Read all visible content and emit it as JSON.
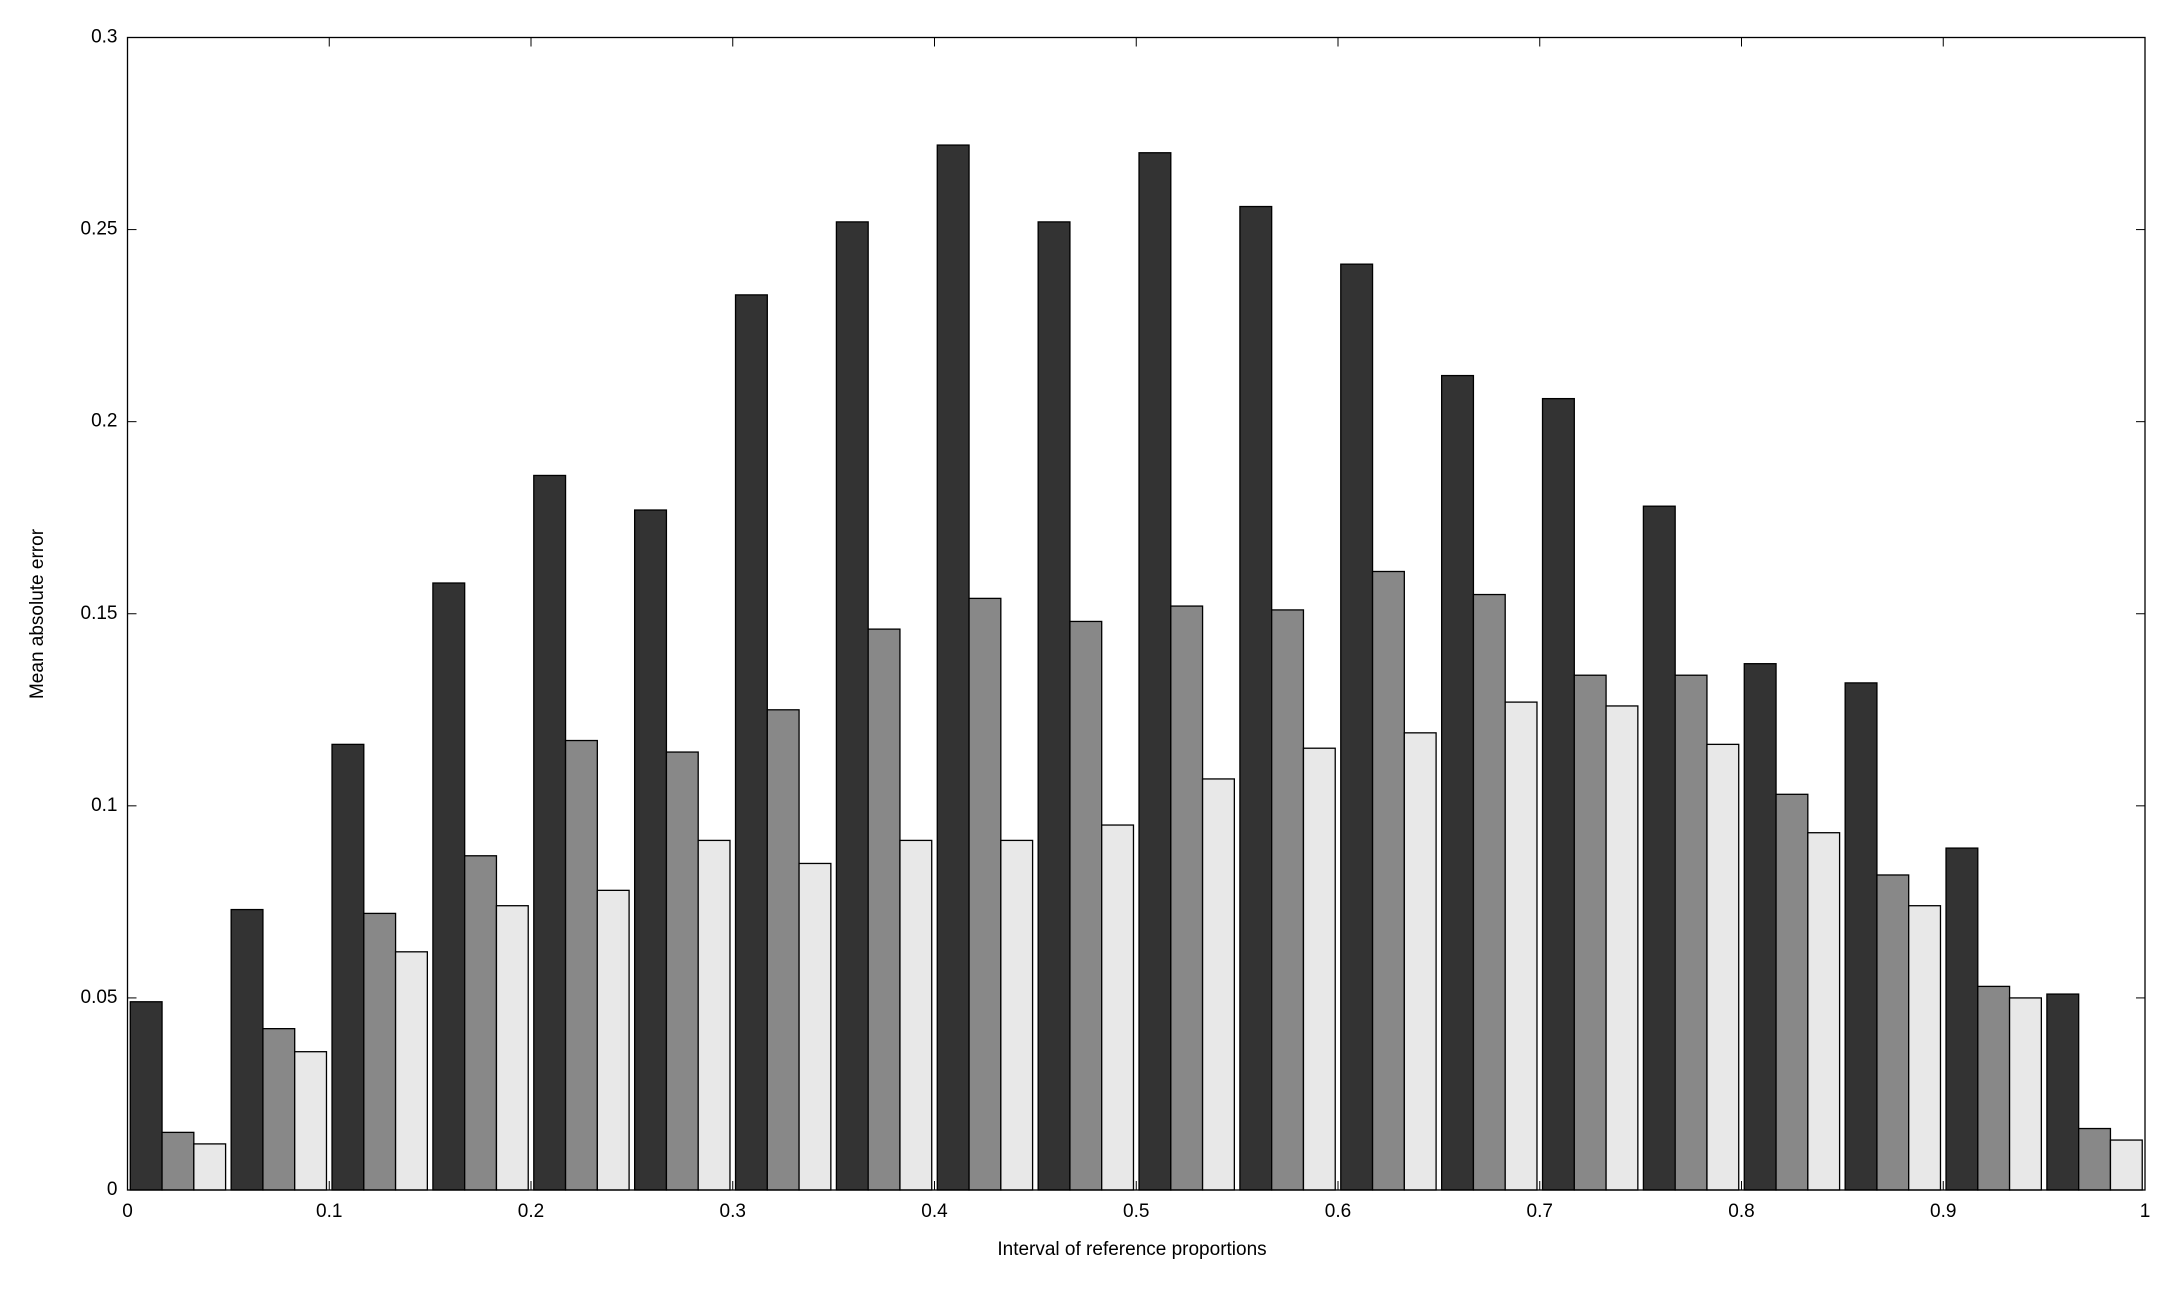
{
  "chart_data": {
    "type": "bar",
    "x_label": "Interval of reference proportions",
    "y_label": "Mean absolute error",
    "x": [
      0.025,
      0.075,
      0.125,
      0.175,
      0.225,
      0.275,
      0.325,
      0.375,
      0.425,
      0.475,
      0.525,
      0.575,
      0.625,
      0.675,
      0.725,
      0.775,
      0.825,
      0.875,
      0.925,
      0.975
    ],
    "series": [
      {
        "color": "#333333",
        "values": [
          0.049,
          0.073,
          0.116,
          0.158,
          0.186,
          0.177,
          0.233,
          0.252,
          0.272,
          0.252,
          0.27,
          0.256,
          0.241,
          0.212,
          0.206,
          0.178,
          0.137,
          0.132,
          0.089,
          0.051
        ]
      },
      {
        "color": "#888888",
        "values": [
          0.015,
          0.042,
          0.072,
          0.087,
          0.117,
          0.114,
          0.125,
          0.146,
          0.154,
          0.148,
          0.152,
          0.151,
          0.161,
          0.155,
          0.134,
          0.134,
          0.103,
          0.082,
          0.053,
          0.016
        ]
      },
      {
        "color": "#e8e8e8",
        "values": [
          0.012,
          0.036,
          0.062,
          0.074,
          0.078,
          0.091,
          0.085,
          0.091,
          0.091,
          0.095,
          0.107,
          0.115,
          0.119,
          0.127,
          0.126,
          0.116,
          0.093,
          0.074,
          0.05,
          0.013
        ]
      }
    ],
    "xlim": [
      0,
      1
    ],
    "xticks": [
      0,
      0.1,
      0.2,
      0.3,
      0.4,
      0.5,
      0.6,
      0.7,
      0.8,
      0.9,
      1
    ],
    "ylim": [
      0,
      0.3
    ],
    "yticks": [
      0,
      0.05,
      0.1,
      0.15,
      0.2,
      0.25,
      0.3
    ]
  }
}
